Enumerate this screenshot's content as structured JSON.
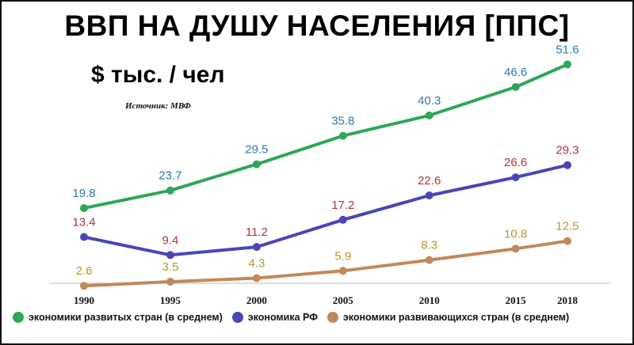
{
  "title": "ВВП НА ДУШУ НАСЕЛЕНИЯ [ППС]",
  "unit": "$ тыс. / чел",
  "source": "Источник: МВФ",
  "colors": {
    "developed_line": "#2ea65a",
    "developed_label": "#2f77a8",
    "russia_line": "#4b45b8",
    "russia_label": "#b3343a",
    "developing_line": "#c2885a",
    "developing_label": "#b8962a",
    "axis": "#bbbbbb"
  },
  "chart_data": {
    "type": "line",
    "categories": [
      "1990",
      "1995",
      "2000",
      "2005",
      "2010",
      "2015",
      "2018"
    ],
    "ylim": [
      0,
      55
    ],
    "grid": false,
    "legend_placement": "bottom",
    "series": [
      {
        "name": "экономики развитых стран (в среднем)",
        "values": [
          19.8,
          23.7,
          29.5,
          35.8,
          40.3,
          46.6,
          51.6
        ],
        "labels": [
          "19.8",
          "23.7",
          "29.5",
          "35.8",
          "40.3",
          "46.6",
          "51.6"
        ]
      },
      {
        "name": "экономика РФ",
        "values": [
          13.4,
          9.4,
          11.2,
          17.2,
          22.6,
          26.6,
          29.3
        ],
        "labels": [
          "13.4",
          "9.4",
          "11.2",
          "17.2",
          "22.6",
          "26.6",
          "29.3"
        ]
      },
      {
        "name": "экономики развивающихся стран (в среднем)",
        "values": [
          2.6,
          3.5,
          4.3,
          5.9,
          8.3,
          10.8,
          12.5
        ],
        "labels": [
          "2.6",
          "3.5",
          "4.3",
          "5.9",
          "8.3",
          "10.8",
          "12.5"
        ]
      }
    ]
  }
}
